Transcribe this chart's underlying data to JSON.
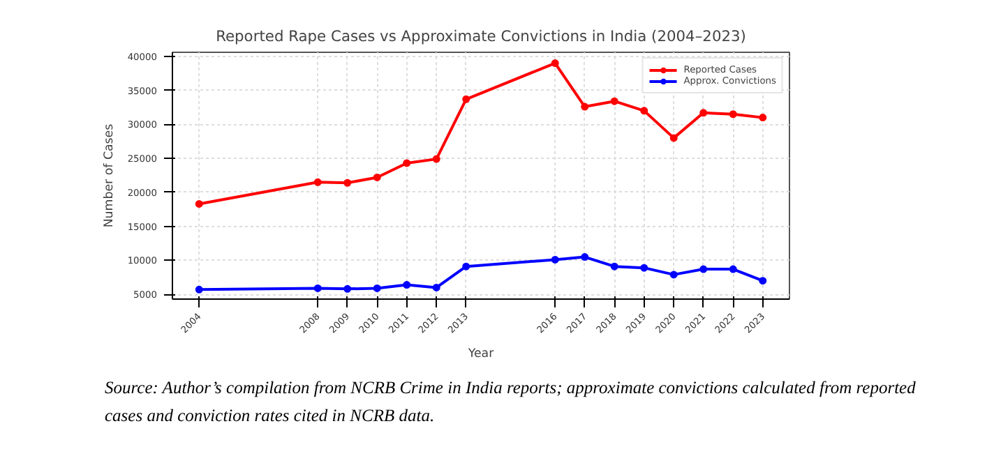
{
  "chart_data": {
    "type": "line",
    "title": "Reported Rape Cases vs Approximate Convictions in India (2004–2023)",
    "xlabel": "Year",
    "ylabel": "Number of Cases",
    "x": [
      2004,
      2008,
      2009,
      2010,
      2011,
      2012,
      2013,
      2016,
      2017,
      2018,
      2019,
      2020,
      2021,
      2022,
      2023
    ],
    "series": [
      {
        "name": "Reported Cases",
        "color": "#ff0000",
        "values": [
          18300,
          21500,
          21400,
          22200,
          24300,
          24900,
          33700,
          39000,
          32600,
          33400,
          32000,
          28000,
          31700,
          31500,
          31000
        ]
      },
      {
        "name": "Approx. Convictions",
        "color": "#0000ff",
        "values": [
          5700,
          5900,
          5800,
          5900,
          6400,
          6000,
          9100,
          10100,
          10500,
          9100,
          8900,
          7900,
          8700,
          8700,
          7000
        ]
      }
    ],
    "xlim": [
      2003.1,
      2023.9
    ],
    "xticks": [
      2004,
      2008,
      2009,
      2010,
      2011,
      2012,
      2013,
      2016,
      2017,
      2018,
      2019,
      2020,
      2021,
      2022,
      2023
    ],
    "ylim": [
      4300,
      40600
    ],
    "yticks": [
      5000,
      10000,
      15000,
      20000,
      25000,
      30000,
      35000,
      40000
    ],
    "grid": true,
    "legend": "top right",
    "marker": "circle",
    "line_style": "solid",
    "annotations": [
      "Source: Author’s compilation from NCRB Crime in India reports; approximate convictions calculated from reported cases and conviction rates cited in NCRB data."
    ]
  }
}
